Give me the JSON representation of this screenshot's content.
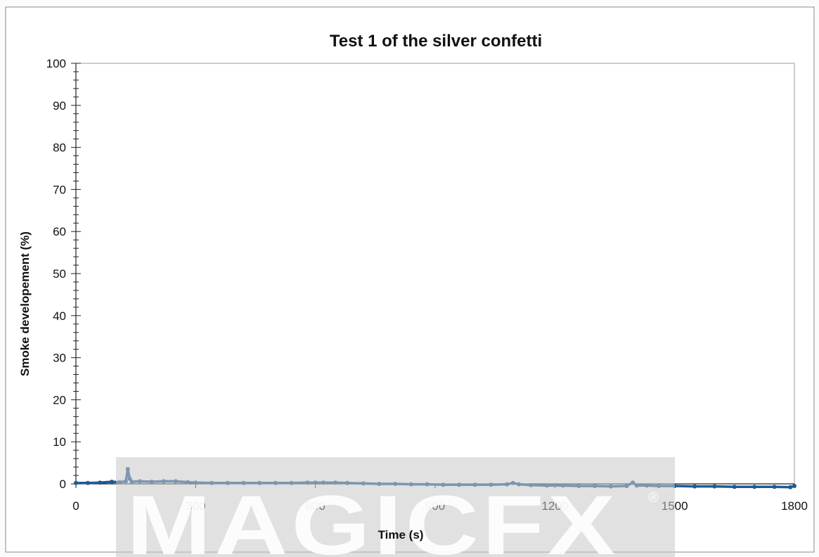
{
  "chart_data": {
    "type": "line",
    "title": "Test 1 of the silver confetti",
    "xlabel": "Time (s)",
    "ylabel": "Smoke developement (%)",
    "xlim": [
      0,
      1800
    ],
    "ylim": [
      0,
      100
    ],
    "x_ticks": [
      0,
      300,
      600,
      900,
      1200,
      1500,
      1800
    ],
    "x_tick_labels": [
      "0",
      "300",
      "600",
      "900",
      "1200",
      "1500",
      "1800"
    ],
    "y_ticks": [
      0,
      10,
      20,
      30,
      40,
      50,
      60,
      70,
      80,
      90,
      100
    ],
    "y_tick_labels": [
      "0",
      "10",
      "20",
      "30",
      "40",
      "50",
      "60",
      "70",
      "80",
      "90",
      "100"
    ],
    "grid": false,
    "series": [
      {
        "color": "#1f5a96",
        "x": [
          0,
          30,
          60,
          90,
          110,
          125,
          130,
          135,
          140,
          160,
          190,
          220,
          250,
          280,
          300,
          340,
          380,
          420,
          460,
          500,
          540,
          580,
          600,
          620,
          650,
          680,
          720,
          760,
          800,
          840,
          880,
          920,
          960,
          1000,
          1040,
          1080,
          1095,
          1110,
          1140,
          1180,
          1220,
          1260,
          1300,
          1340,
          1380,
          1395,
          1405,
          1430,
          1460,
          1500,
          1550,
          1600,
          1650,
          1700,
          1750,
          1790,
          1800
        ],
        "y": [
          0.2,
          0.2,
          0.3,
          0.5,
          0.4,
          0.6,
          3.5,
          1.2,
          0.5,
          0.6,
          0.5,
          0.6,
          0.6,
          0.4,
          0.3,
          0.2,
          0.2,
          0.2,
          0.2,
          0.2,
          0.2,
          0.3,
          0.3,
          0.3,
          0.3,
          0.2,
          0.1,
          0.0,
          0.0,
          -0.1,
          -0.1,
          -0.2,
          -0.2,
          -0.2,
          -0.2,
          -0.1,
          0.2,
          -0.1,
          -0.3,
          -0.4,
          -0.4,
          -0.5,
          -0.5,
          -0.6,
          -0.5,
          0.3,
          -0.4,
          -0.4,
          -0.5,
          -0.5,
          -0.6,
          -0.6,
          -0.7,
          -0.7,
          -0.7,
          -0.8,
          -0.5
        ]
      }
    ]
  },
  "watermark": {
    "text": "MAGICFX",
    "registered": "®"
  }
}
